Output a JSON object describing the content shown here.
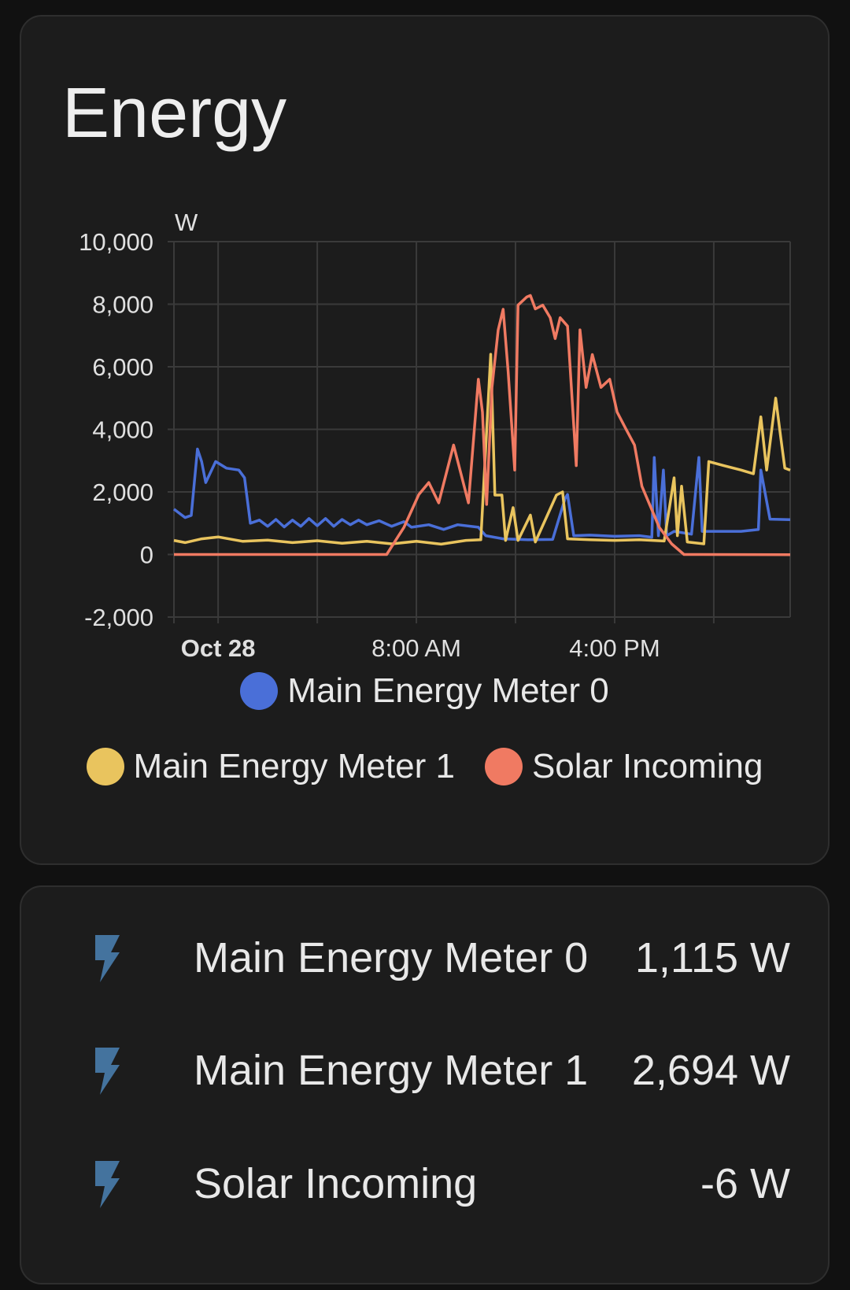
{
  "card_title": "Energy",
  "colors": {
    "meter0": "#4a6fd8",
    "meter1": "#e9c45e",
    "solar": "#f07a62",
    "icon": "#44739e",
    "grid": "#3a3a3a"
  },
  "chart_data": {
    "type": "line",
    "title": "Energy",
    "ylabel": "W",
    "ylim": [
      -2000,
      10000
    ],
    "yticks": [
      "10,000",
      "8,000",
      "6,000",
      "4,000",
      "2,000",
      "0",
      "-2,000"
    ],
    "ytick_values": [
      10000,
      8000,
      6000,
      4000,
      2000,
      0,
      -2000
    ],
    "xlim": [
      "Oct 27 22:13",
      "Oct 28 23:05"
    ],
    "xticks": [
      {
        "label": "Oct 28",
        "time": "Oct 28 00:00",
        "bold": true
      },
      {
        "label": "8:00 AM",
        "time": "Oct 28 08:00",
        "bold": false
      },
      {
        "label": "4:00 PM",
        "time": "Oct 28 16:00",
        "bold": false
      }
    ],
    "grid": true,
    "legend_placement": "bottom",
    "series": [
      {
        "name": "Main Energy Meter 0",
        "color": "#4a6fd8",
        "points": [
          [
            "Oct 27 22:13",
            1450
          ],
          [
            "Oct 27 22:40",
            1180
          ],
          [
            "Oct 27 22:55",
            1250
          ],
          [
            "Oct 27 23:10",
            3370
          ],
          [
            "Oct 27 23:20",
            2970
          ],
          [
            "Oct 27 23:30",
            2300
          ],
          [
            "Oct 27 23:54",
            2970
          ],
          [
            "Oct 28 00:20",
            2760
          ],
          [
            "Oct 28 00:50",
            2700
          ],
          [
            "Oct 28 01:04",
            2450
          ],
          [
            "Oct 28 01:18",
            1000
          ],
          [
            "Oct 28 01:40",
            1100
          ],
          [
            "Oct 28 02:00",
            900
          ],
          [
            "Oct 28 02:20",
            1120
          ],
          [
            "Oct 28 02:40",
            880
          ],
          [
            "Oct 28 03:00",
            1100
          ],
          [
            "Oct 28 03:20",
            900
          ],
          [
            "Oct 28 03:40",
            1150
          ],
          [
            "Oct 28 04:00",
            920
          ],
          [
            "Oct 28 04:20",
            1150
          ],
          [
            "Oct 28 04:40",
            900
          ],
          [
            "Oct 28 05:00",
            1120
          ],
          [
            "Oct 28 05:20",
            950
          ],
          [
            "Oct 28 05:40",
            1100
          ],
          [
            "Oct 28 06:00",
            950
          ],
          [
            "Oct 28 06:30",
            1080
          ],
          [
            "Oct 28 07:00",
            900
          ],
          [
            "Oct 28 07:30",
            1050
          ],
          [
            "Oct 28 07:48",
            870
          ],
          [
            "Oct 28 08:30",
            950
          ],
          [
            "Oct 28 09:06",
            800
          ],
          [
            "Oct 28 09:40",
            950
          ],
          [
            "Oct 28 10:30",
            870
          ],
          [
            "Oct 28 10:48",
            600
          ],
          [
            "Oct 28 11:30",
            500
          ],
          [
            "Oct 28 12:30",
            470
          ],
          [
            "Oct 28 13:30",
            480
          ],
          [
            "Oct 28 14:00",
            1790
          ],
          [
            "Oct 28 14:06",
            1920
          ],
          [
            "Oct 28 14:21",
            600
          ],
          [
            "Oct 28 15:00",
            620
          ],
          [
            "Oct 28 16:00",
            580
          ],
          [
            "Oct 28 17:00",
            600
          ],
          [
            "Oct 28 17:30",
            550
          ],
          [
            "Oct 28 17:36",
            3100
          ],
          [
            "Oct 28 17:46",
            600
          ],
          [
            "Oct 28 17:58",
            2700
          ],
          [
            "Oct 28 18:06",
            600
          ],
          [
            "Oct 28 18:24",
            740
          ],
          [
            "Oct 28 19:06",
            650
          ],
          [
            "Oct 28 19:24",
            3100
          ],
          [
            "Oct 28 19:32",
            740
          ],
          [
            "Oct 28 21:06",
            740
          ],
          [
            "Oct 28 21:48",
            800
          ],
          [
            "Oct 28 21:54",
            2700
          ],
          [
            "Oct 28 22:16",
            1130
          ],
          [
            "Oct 28 23:05",
            1115
          ]
        ]
      },
      {
        "name": "Main Energy Meter 1",
        "color": "#e9c45e",
        "points": [
          [
            "Oct 27 22:13",
            450
          ],
          [
            "Oct 27 22:40",
            380
          ],
          [
            "Oct 27 23:20",
            500
          ],
          [
            "Oct 28 00:00",
            560
          ],
          [
            "Oct 28 01:00",
            420
          ],
          [
            "Oct 28 02:00",
            460
          ],
          [
            "Oct 28 03:00",
            380
          ],
          [
            "Oct 28 04:00",
            440
          ],
          [
            "Oct 28 05:00",
            360
          ],
          [
            "Oct 28 06:00",
            420
          ],
          [
            "Oct 28 07:00",
            340
          ],
          [
            "Oct 28 08:00",
            420
          ],
          [
            "Oct 28 09:00",
            330
          ],
          [
            "Oct 28 10:00",
            450
          ],
          [
            "Oct 28 10:36",
            470
          ],
          [
            "Oct 28 11:00",
            6400
          ],
          [
            "Oct 28 11:10",
            1900
          ],
          [
            "Oct 28 11:27",
            1900
          ],
          [
            "Oct 28 11:36",
            450
          ],
          [
            "Oct 28 11:54",
            1500
          ],
          [
            "Oct 28 12:06",
            450
          ],
          [
            "Oct 28 12:36",
            1260
          ],
          [
            "Oct 28 12:48",
            400
          ],
          [
            "Oct 28 13:39",
            1900
          ],
          [
            "Oct 28 13:54",
            2000
          ],
          [
            "Oct 28 14:06",
            500
          ],
          [
            "Oct 28 15:00",
            470
          ],
          [
            "Oct 28 16:00",
            450
          ],
          [
            "Oct 28 17:00",
            470
          ],
          [
            "Oct 28 18:00",
            430
          ],
          [
            "Oct 28 18:24",
            2450
          ],
          [
            "Oct 28 18:32",
            600
          ],
          [
            "Oct 28 18:42",
            2180
          ],
          [
            "Oct 28 18:56",
            400
          ],
          [
            "Oct 28 19:36",
            340
          ],
          [
            "Oct 28 19:48",
            2970
          ],
          [
            "Oct 28 20:24",
            2840
          ],
          [
            "Oct 28 21:06",
            2700
          ],
          [
            "Oct 28 21:36",
            2580
          ],
          [
            "Oct 28 21:54",
            4400
          ],
          [
            "Oct 28 22:08",
            2700
          ],
          [
            "Oct 28 22:30",
            5000
          ],
          [
            "Oct 28 22:42",
            3760
          ],
          [
            "Oct 28 22:52",
            2760
          ],
          [
            "Oct 28 23:05",
            2694
          ]
        ]
      },
      {
        "name": "Solar Incoming",
        "color": "#f07a62",
        "points": [
          [
            "Oct 27 22:13",
            0
          ],
          [
            "Oct 28 06:48",
            0
          ],
          [
            "Oct 28 07:30",
            870
          ],
          [
            "Oct 28 08:06",
            1920
          ],
          [
            "Oct 28 08:30",
            2300
          ],
          [
            "Oct 28 08:54",
            1650
          ],
          [
            "Oct 28 09:30",
            3500
          ],
          [
            "Oct 28 09:48",
            2580
          ],
          [
            "Oct 28 10:06",
            1650
          ],
          [
            "Oct 28 10:30",
            5600
          ],
          [
            "Oct 28 10:40",
            4550
          ],
          [
            "Oct 28 10:50",
            1600
          ],
          [
            "Oct 28 11:03",
            5340
          ],
          [
            "Oct 28 11:18",
            7180
          ],
          [
            "Oct 28 11:30",
            7840
          ],
          [
            "Oct 28 11:42",
            5860
          ],
          [
            "Oct 28 11:58",
            2700
          ],
          [
            "Oct 28 12:06",
            7970
          ],
          [
            "Oct 28 12:27",
            8230
          ],
          [
            "Oct 28 12:36",
            8280
          ],
          [
            "Oct 28 12:48",
            7850
          ],
          [
            "Oct 28 13:06",
            7970
          ],
          [
            "Oct 28 13:24",
            7570
          ],
          [
            "Oct 28 13:36",
            6900
          ],
          [
            "Oct 28 13:48",
            7570
          ],
          [
            "Oct 28 14:06",
            7300
          ],
          [
            "Oct 28 14:27",
            2840
          ],
          [
            "Oct 28 14:36",
            7180
          ],
          [
            "Oct 28 14:51",
            5340
          ],
          [
            "Oct 28 15:06",
            6390
          ],
          [
            "Oct 28 15:27",
            5340
          ],
          [
            "Oct 28 15:48",
            5600
          ],
          [
            "Oct 28 16:06",
            4550
          ],
          [
            "Oct 28 16:27",
            4020
          ],
          [
            "Oct 28 16:48",
            3500
          ],
          [
            "Oct 28 17:06",
            2180
          ],
          [
            "Oct 28 17:48",
            870
          ],
          [
            "Oct 28 18:18",
            340
          ],
          [
            "Oct 28 18:48",
            0
          ],
          [
            "Oct 28 23:05",
            -6
          ]
        ]
      }
    ]
  },
  "legend": [
    {
      "label": "Main Energy Meter 0",
      "color": "#4a6fd8"
    },
    {
      "label": "Main Energy Meter 1",
      "color": "#e9c45e"
    },
    {
      "label": "Solar Incoming",
      "color": "#f07a62"
    }
  ],
  "entities": [
    {
      "name": "Main Energy Meter 0",
      "value": "1,115 W",
      "icon": "flash-icon"
    },
    {
      "name": "Main Energy Meter 1",
      "value": "2,694 W",
      "icon": "flash-icon"
    },
    {
      "name": "Solar Incoming",
      "value": "-6 W",
      "icon": "flash-icon"
    }
  ]
}
